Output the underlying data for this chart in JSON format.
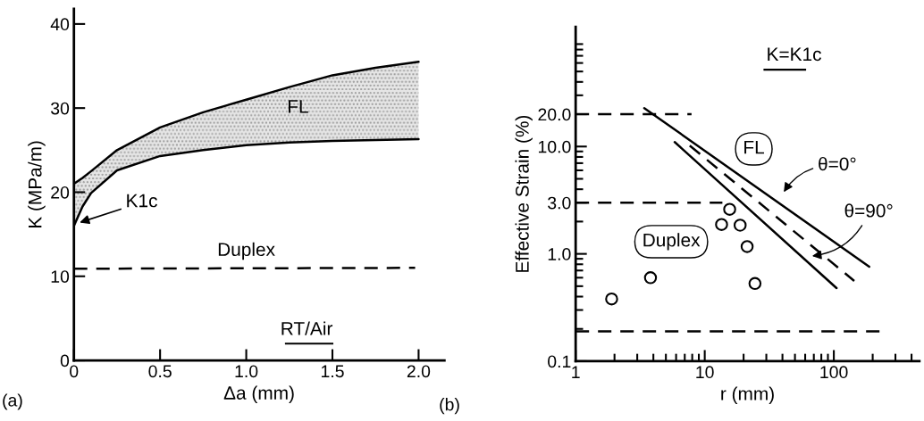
{
  "chart_data": [
    {
      "type": "line",
      "xlabel": "Δa (mm)",
      "ylabel": "K (MPa/m)",
      "xlim": [
        0,
        2.15
      ],
      "ylim": [
        0,
        41.8
      ],
      "xticks": [
        0,
        0.5,
        {
          "value": 1.0,
          "label": "1.0"
        },
        1.5,
        {
          "value": 2.0,
          "label": "2.0"
        }
      ],
      "yticks": [
        0,
        10,
        20,
        30,
        40
      ],
      "grid": false,
      "legend": false,
      "series": [
        {
          "color": "#000000",
          "line_style": "solid",
          "x": [
            0,
            0.05,
            0.1,
            0.25,
            0.5,
            0.75,
            1.0,
            1.25,
            1.5,
            1.75,
            2.0
          ],
          "values": [
            21.0,
            21.7,
            22.5,
            25.0,
            27.7,
            29.5,
            31.0,
            32.5,
            33.9,
            34.8,
            35.5
          ],
          "lower": [
            16.0,
            18.3,
            19.9,
            22.6,
            24.3,
            25.0,
            25.6,
            25.9,
            26.1,
            26.2,
            26.3
          ],
          "upper": [
            21.0,
            21.7,
            22.5,
            25.0,
            27.7,
            29.5,
            31.0,
            32.5,
            33.9,
            34.8,
            35.5
          ]
        },
        {
          "color": "#000000",
          "line_style": "solid",
          "x": [
            0,
            0.05,
            0.1,
            0.25,
            0.5,
            0.75,
            1.0,
            1.25,
            1.5,
            1.75,
            2.0
          ],
          "values": [
            16.0,
            18.3,
            19.9,
            22.6,
            24.3,
            25.0,
            25.6,
            25.9,
            26.1,
            26.2,
            26.3
          ]
        },
        {
          "color": "#000000",
          "line_style": "dashed",
          "x": [
            0,
            1.98
          ],
          "values": [
            10.9,
            11.0
          ]
        }
      ],
      "annotations": [
        "FL",
        {
          "text": "K1c",
          "x": 0.02,
          "y": 16.3
        },
        "Duplex",
        "RT/Air",
        "(a)"
      ]
    },
    {
      "type": "scatter",
      "xlabel": "r (mm)",
      "ylabel": "Effective Strain (%)",
      "log": "xy",
      "xlim": [
        1,
        460
      ],
      "ylim": [
        0.1,
        130
      ],
      "xticks": [
        1,
        10,
        100
      ],
      "yticks": [
        0.1,
        {
          "value": 1,
          "label": "1.0"
        },
        {
          "value": 3,
          "label": "3.0"
        },
        {
          "value": 10,
          "label": "10.0"
        },
        {
          "value": 20,
          "label": "20.0"
        }
      ],
      "grid": false,
      "legend": false,
      "series": [
        {
          "marker": "circle",
          "color": "#000000",
          "x": [
            1.9,
            3.8,
            13.5,
            15.6,
            18.8,
            21.3,
            24.5
          ],
          "values": [
            0.38,
            0.6,
            1.88,
            2.6,
            1.85,
            1.17,
            0.53
          ]
        },
        {
          "type": "line",
          "marker": "none",
          "line_style": "solid",
          "color": "#000000",
          "x": [
            3.4,
            188
          ],
          "values": [
            22.8,
            0.76
          ]
        },
        {
          "type": "line",
          "marker": "none",
          "line_style": "solid",
          "color": "#000000",
          "x": [
            5.85,
            105
          ],
          "values": [
            11,
            0.48
          ]
        },
        {
          "type": "line",
          "marker": "none",
          "line_style": "dashed",
          "color": "#000000",
          "x": [
            7.65,
            144
          ],
          "values": [
            10.2,
            0.56
          ]
        },
        {
          "type": "line",
          "marker": "none",
          "line_style": "dashed",
          "color": "#000000",
          "x": [
            1,
            7.9
          ],
          "values": [
            20,
            20
          ]
        },
        {
          "type": "line",
          "marker": "none",
          "line_style": "dashed",
          "color": "#000000",
          "x": [
            1,
            13.7
          ],
          "values": [
            3,
            3
          ]
        },
        {
          "type": "line",
          "marker": "none",
          "line_style": "dashed",
          "color": "#000000",
          "x": [
            1,
            227
          ],
          "values": [
            0.19,
            0.19
          ]
        }
      ],
      "annotations": [
        "K=K1c",
        "FL",
        "Duplex",
        "θ=0°",
        "θ=90°",
        "(b)"
      ]
    }
  ]
}
